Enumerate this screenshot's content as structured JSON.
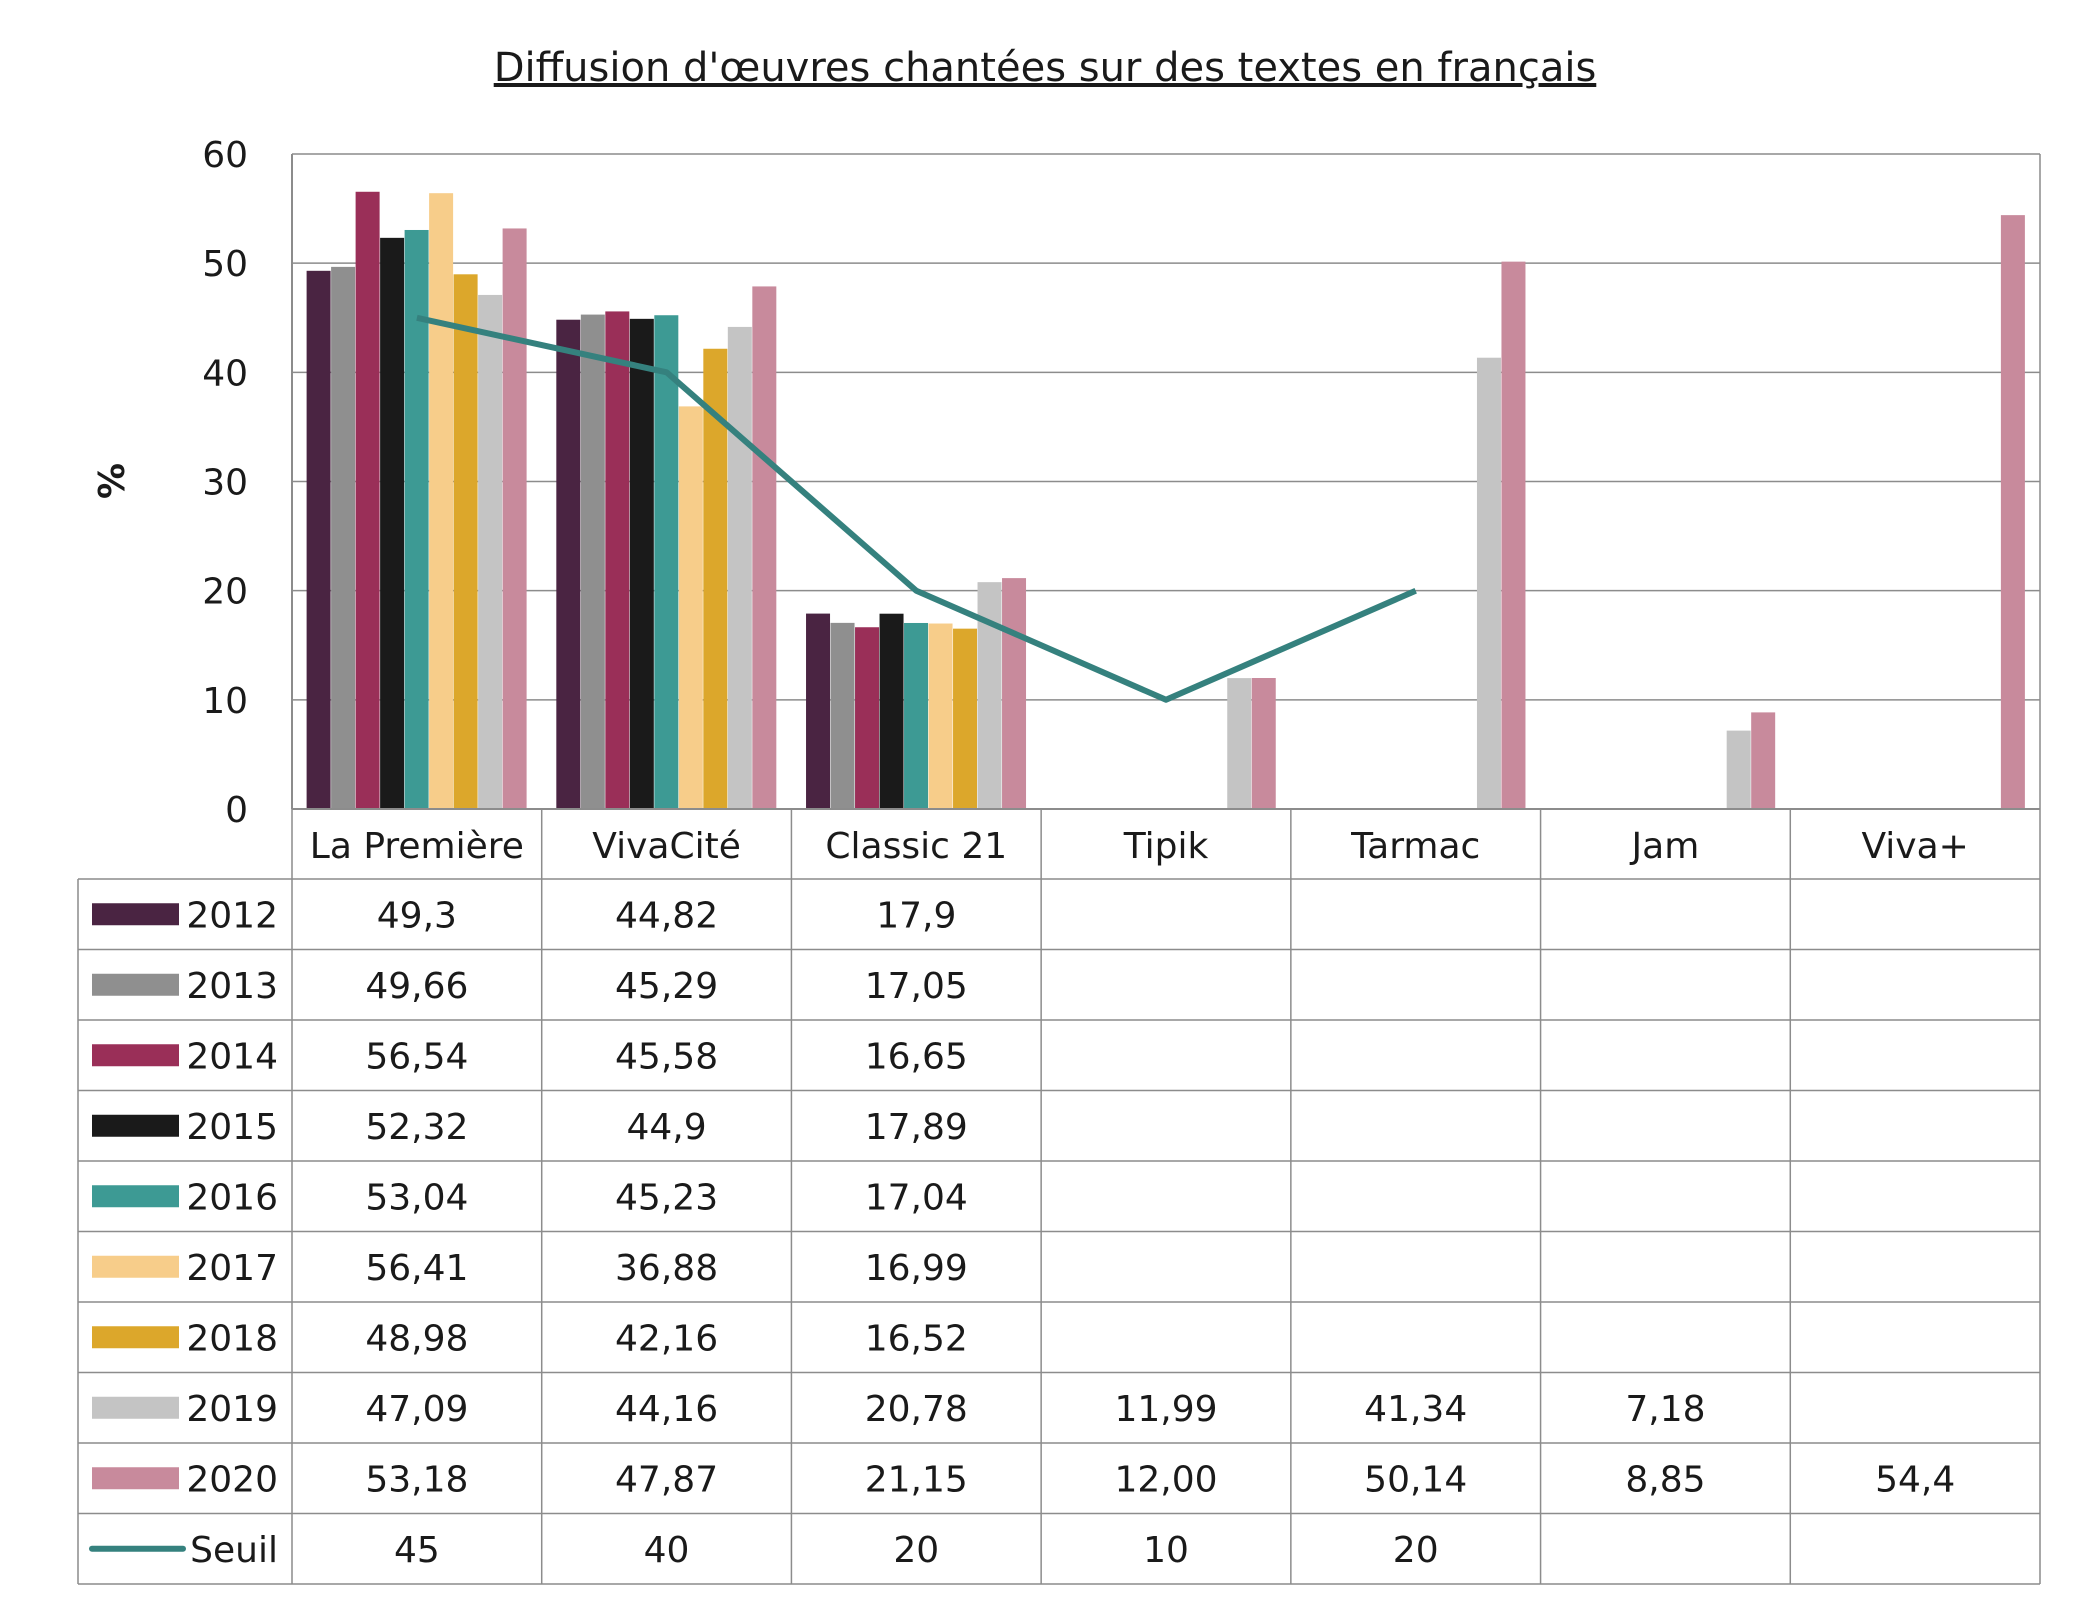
{
  "chart_data": {
    "type": "bar",
    "title": "Diffusion d'œuvres chantées sur des textes en français",
    "ylabel": "%",
    "ylim": [
      0,
      60
    ],
    "yticks": [
      "0",
      "10",
      "20",
      "30",
      "40",
      "50",
      "60"
    ],
    "grid": true,
    "legend": "table-left",
    "categories": [
      "La Première",
      "VivaCité",
      "Classic 21",
      "Tipik",
      "Tarmac",
      "Jam",
      "Viva+"
    ],
    "series": [
      {
        "name": "2012",
        "color": "#4a2442",
        "values": [
          49.3,
          44.82,
          17.9,
          null,
          null,
          null,
          null
        ],
        "labels": [
          "49,3",
          "44,82",
          "17,9",
          "",
          "",
          "",
          ""
        ]
      },
      {
        "name": "2013",
        "color": "#8f8f8f",
        "values": [
          49.66,
          45.29,
          17.05,
          null,
          null,
          null,
          null
        ],
        "labels": [
          "49,66",
          "45,29",
          "17,05",
          "",
          "",
          "",
          ""
        ]
      },
      {
        "name": "2014",
        "color": "#9a2f58",
        "values": [
          56.54,
          45.58,
          16.65,
          null,
          null,
          null,
          null
        ],
        "labels": [
          "56,54",
          "45,58",
          "16,65",
          "",
          "",
          "",
          ""
        ]
      },
      {
        "name": "2015",
        "color": "#1a1a1a",
        "values": [
          52.32,
          44.9,
          17.89,
          null,
          null,
          null,
          null
        ],
        "labels": [
          "52,32",
          "44,9",
          "17,89",
          "",
          "",
          "",
          ""
        ]
      },
      {
        "name": "2016",
        "color": "#3d9a94",
        "values": [
          53.04,
          45.23,
          17.04,
          null,
          null,
          null,
          null
        ],
        "labels": [
          "53,04",
          "45,23",
          "17,04",
          "",
          "",
          "",
          ""
        ]
      },
      {
        "name": "2017",
        "color": "#f7cd8a",
        "values": [
          56.41,
          36.88,
          16.99,
          null,
          null,
          null,
          null
        ],
        "labels": [
          "56,41",
          "36,88",
          "16,99",
          "",
          "",
          "",
          ""
        ]
      },
      {
        "name": "2018",
        "color": "#dca72b",
        "values": [
          48.98,
          42.16,
          16.52,
          null,
          null,
          null,
          null
        ],
        "labels": [
          "48,98",
          "42,16",
          "16,52",
          "",
          "",
          "",
          ""
        ]
      },
      {
        "name": "2019",
        "color": "#c4c4c4",
        "values": [
          47.09,
          44.16,
          20.78,
          11.99,
          41.34,
          7.18,
          null
        ],
        "labels": [
          "47,09",
          "44,16",
          "20,78",
          "11,99",
          "41,34",
          "7,18",
          ""
        ]
      },
      {
        "name": "2020",
        "color": "#c88a9c",
        "values": [
          53.18,
          47.87,
          21.15,
          12.0,
          50.14,
          8.85,
          54.4
        ],
        "labels": [
          "53,18",
          "47,87",
          "21,15",
          "12,00",
          "50,14",
          "8,85",
          "54,4"
        ]
      }
    ],
    "line": {
      "name": "Seuil",
      "color": "#35817e",
      "values": [
        45,
        40,
        20,
        10,
        20,
        null,
        null
      ],
      "labels": [
        "45",
        "40",
        "20",
        "10",
        "20",
        "",
        ""
      ]
    }
  }
}
